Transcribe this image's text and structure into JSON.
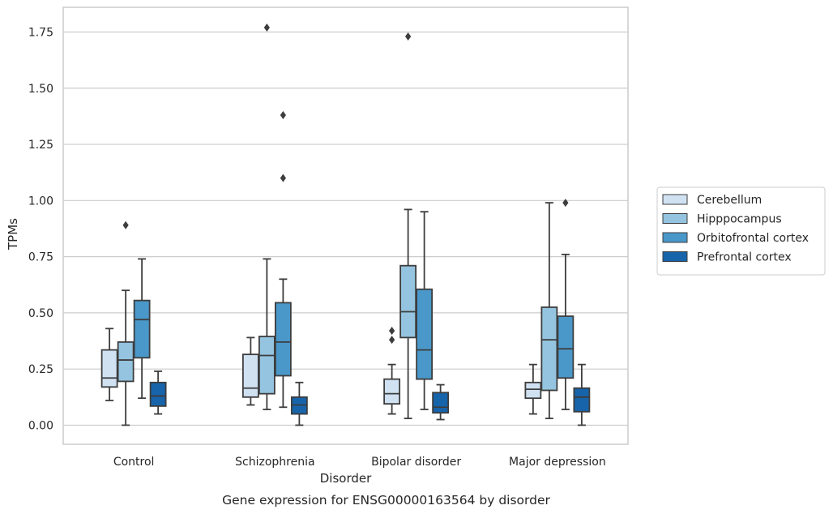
{
  "chart_data": {
    "type": "box",
    "title": "",
    "caption": "Gene expression for ENSG00000163564 by disorder",
    "xlabel": "Disorder",
    "ylabel": "TPMs",
    "ylim": [
      -0.085,
      1.86
    ],
    "yticks": [
      0.0,
      0.25,
      0.5,
      0.75,
      1.0,
      1.25,
      1.5,
      1.75
    ],
    "ytick_labels": [
      "0.00",
      "0.25",
      "0.50",
      "0.75",
      "1.00",
      "1.25",
      "1.50",
      "1.75"
    ],
    "grid": "horizontal",
    "legend_position": "right",
    "categories": [
      "Control",
      "Schizophrenia",
      "Bipolar disorder",
      "Major depression"
    ],
    "series": [
      {
        "name": "Cerebellum",
        "color": "#d0e1f2",
        "boxes": [
          {
            "whisker_low": 0.11,
            "q1": 0.17,
            "median": 0.21,
            "q3": 0.335,
            "whisker_high": 0.43,
            "outliers": []
          },
          {
            "whisker_low": 0.09,
            "q1": 0.125,
            "median": 0.165,
            "q3": 0.315,
            "whisker_high": 0.39,
            "outliers": []
          },
          {
            "whisker_low": 0.05,
            "q1": 0.095,
            "median": 0.14,
            "q3": 0.205,
            "whisker_high": 0.27,
            "outliers": [
              0.38,
              0.42
            ]
          },
          {
            "whisker_low": 0.05,
            "q1": 0.12,
            "median": 0.16,
            "q3": 0.19,
            "whisker_high": 0.27,
            "outliers": []
          }
        ]
      },
      {
        "name": "Hipppocampus",
        "color": "#94c4df",
        "boxes": [
          {
            "whisker_low": 0.0,
            "q1": 0.195,
            "median": 0.29,
            "q3": 0.37,
            "whisker_high": 0.6,
            "outliers": [
              0.89
            ]
          },
          {
            "whisker_low": 0.07,
            "q1": 0.14,
            "median": 0.31,
            "q3": 0.395,
            "whisker_high": 0.74,
            "outliers": [
              1.77
            ]
          },
          {
            "whisker_low": 0.03,
            "q1": 0.39,
            "median": 0.505,
            "q3": 0.71,
            "whisker_high": 0.96,
            "outliers": [
              1.73
            ]
          },
          {
            "whisker_low": 0.03,
            "q1": 0.155,
            "median": 0.38,
            "q3": 0.525,
            "whisker_high": 0.99,
            "outliers": []
          }
        ]
      },
      {
        "name": "Orbitofrontal cortex",
        "color": "#4a98c9",
        "boxes": [
          {
            "whisker_low": 0.12,
            "q1": 0.3,
            "median": 0.47,
            "q3": 0.555,
            "whisker_high": 0.74,
            "outliers": []
          },
          {
            "whisker_low": 0.08,
            "q1": 0.22,
            "median": 0.37,
            "q3": 0.545,
            "whisker_high": 0.65,
            "outliers": [
              1.1,
              1.38
            ]
          },
          {
            "whisker_low": 0.07,
            "q1": 0.205,
            "median": 0.335,
            "q3": 0.605,
            "whisker_high": 0.95,
            "outliers": []
          },
          {
            "whisker_low": 0.07,
            "q1": 0.21,
            "median": 0.34,
            "q3": 0.485,
            "whisker_high": 0.76,
            "outliers": [
              0.99
            ]
          }
        ]
      },
      {
        "name": "Prefrontal cortex",
        "color": "#1764ab",
        "boxes": [
          {
            "whisker_low": 0.05,
            "q1": 0.085,
            "median": 0.13,
            "q3": 0.19,
            "whisker_high": 0.24,
            "outliers": []
          },
          {
            "whisker_low": 0.0,
            "q1": 0.05,
            "median": 0.09,
            "q3": 0.125,
            "whisker_high": 0.19,
            "outliers": []
          },
          {
            "whisker_low": 0.025,
            "q1": 0.055,
            "median": 0.08,
            "q3": 0.145,
            "whisker_high": 0.18,
            "outliers": []
          },
          {
            "whisker_low": 0.0,
            "q1": 0.06,
            "median": 0.125,
            "q3": 0.165,
            "whisker_high": 0.27,
            "outliers": []
          }
        ]
      }
    ]
  }
}
